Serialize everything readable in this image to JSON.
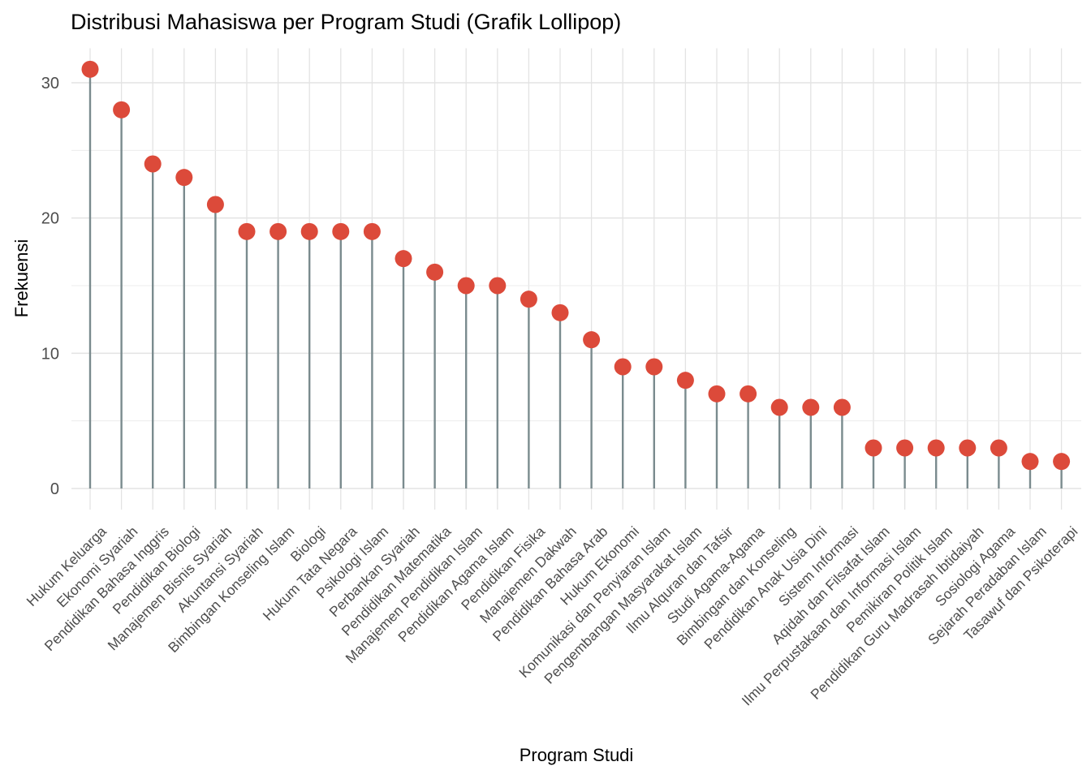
{
  "chart_data": {
    "type": "lollipop",
    "title": "Distribusi Mahasiswa per Program Studi (Grafik Lollipop)",
    "xlabel": "Program Studi",
    "ylabel": "Frekuensi",
    "ylim": [
      0,
      32.5
    ],
    "yticks": [
      0,
      10,
      20,
      30
    ],
    "ygrid_major": [
      0,
      10,
      20,
      30
    ],
    "ygrid_minor": [
      5,
      15,
      25
    ],
    "grid": "on",
    "legend": "none",
    "categories": [
      "Hukum Keluarga",
      "Ekonomi Syariah",
      "Pendidikan Bahasa Inggris",
      "Pendidikan Biologi",
      "Manajemen Bisnis Syariah",
      "Akuntansi Syariah",
      "Bimbingan Konseling Islam",
      "Biologi",
      "Hukum Tata Negara",
      "Psikologi Islam",
      "Perbankan Syariah",
      "Pendidikan Matematika",
      "Manajemen Pendidikan Islam",
      "Pendidikan Agama Islam",
      "Pendidikan Fisika",
      "Manajemen Dakwah",
      "Pendidikan Bahasa Arab",
      "Hukum Ekonomi",
      "Komunikasi dan Penyiaran Islam",
      "Pengembangan Masyarakat Islam",
      "Ilmu Alquran dan Tafsir",
      "Studi Agama-Agama",
      "Bimbingan dan Konseling",
      "Pendidikan Anak Usia Dini",
      "Sistem Informasi",
      "Aqidah dan Filsafat Islam",
      "Ilmu Perpustakaan dan Informasi Islam",
      "Pemikiran Politik Islam",
      "Pendidikan Guru Madrasah Ibtidaiyah",
      "Sosiologi Agama",
      "Sejarah Peradaban Islam",
      "Tasawuf dan Psikoterapi"
    ],
    "values": [
      31,
      28,
      24,
      23,
      21,
      19,
      19,
      19,
      19,
      19,
      17,
      16,
      15,
      15,
      14,
      13,
      11,
      9,
      9,
      8,
      7,
      7,
      6,
      6,
      6,
      3,
      3,
      3,
      3,
      3,
      2,
      2
    ],
    "colors": {
      "point": "#DC4A3A",
      "stem": "#7A8B8E",
      "grid_major": "#E3E3E3",
      "grid_minor": "#ECECEC",
      "axis_text": "#4D4D4D"
    }
  }
}
